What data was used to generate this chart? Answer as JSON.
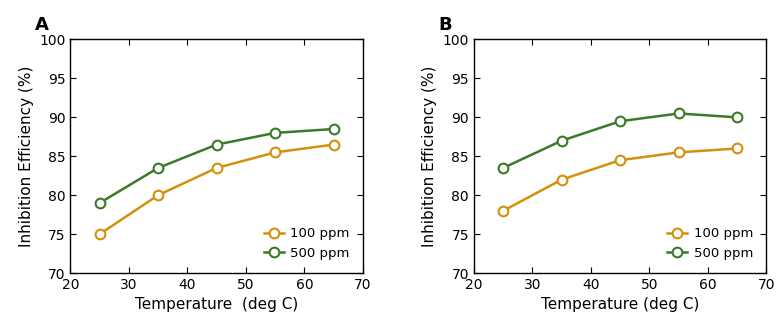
{
  "panel_A": {
    "label": "A",
    "temperature": [
      25,
      35,
      45,
      55,
      65
    ],
    "series": [
      {
        "name": "100 ppm",
        "values": [
          75.0,
          80.0,
          83.5,
          85.5,
          86.5
        ],
        "color": "#D4900A"
      },
      {
        "name": "500 ppm",
        "values": [
          79.0,
          83.5,
          86.5,
          88.0,
          88.5
        ],
        "color": "#3A7A28"
      }
    ],
    "xlabel": "Temperature  (deg C)",
    "ylabel": "Inhibition Efficiency (%)",
    "ylim": [
      70,
      100
    ],
    "xlim": [
      20,
      70
    ],
    "yticks": [
      70,
      75,
      80,
      85,
      90,
      95,
      100
    ],
    "xticks": [
      20,
      30,
      40,
      50,
      60,
      70
    ],
    "legend_loc": "lower right"
  },
  "panel_B": {
    "label": "B",
    "temperature": [
      25,
      35,
      45,
      55,
      65
    ],
    "series": [
      {
        "name": "100 ppm",
        "values": [
          78.0,
          82.0,
          84.5,
          85.5,
          86.0
        ],
        "color": "#D4900A"
      },
      {
        "name": "500 ppm",
        "values": [
          83.5,
          87.0,
          89.5,
          90.5,
          90.0
        ],
        "color": "#3A7A28"
      }
    ],
    "xlabel": "Temperature (deg C)",
    "ylabel": "Inhibition Efficiency (%)",
    "ylim": [
      70,
      100
    ],
    "xlim": [
      20,
      70
    ],
    "yticks": [
      70,
      75,
      80,
      85,
      90,
      95,
      100
    ],
    "xticks": [
      20,
      30,
      40,
      50,
      60,
      70
    ],
    "legend_loc": "lower right"
  },
  "figure_bg": "#ffffff",
  "marker": "o",
  "markersize": 7,
  "linewidth": 1.8,
  "markerfacecolor": "white",
  "markeredgewidth": 1.5,
  "tick_fontsize": 10,
  "label_fontsize": 11,
  "legend_fontsize": 9.5,
  "panel_label_fontsize": 13
}
